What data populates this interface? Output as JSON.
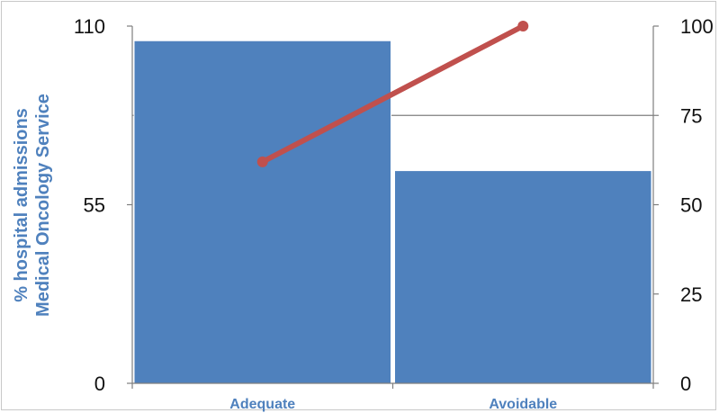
{
  "chart_data": {
    "type": "bar",
    "categories": [
      "Adequate",
      "Avoidable"
    ],
    "series": [
      {
        "type": "bar",
        "values": [
          105.5,
          65.5
        ],
        "axis": "left"
      },
      {
        "type": "line",
        "values": [
          62,
          100
        ],
        "axis": "right"
      }
    ],
    "ylabel": [
      "% hospital admissions",
      "Medical Oncology Service"
    ],
    "left_axis": {
      "ticks": [
        "0",
        "55",
        "110"
      ],
      "ylim": [
        0,
        110
      ]
    },
    "right_axis": {
      "ticks": [
        "0",
        "25",
        "50",
        "75",
        "100"
      ],
      "ylim": [
        0,
        100
      ]
    },
    "grid": "horizontal at 75 (right axis)",
    "colors": {
      "bar": "#4f81bd",
      "line": "#c0504d",
      "label": "#4f81bd"
    }
  }
}
